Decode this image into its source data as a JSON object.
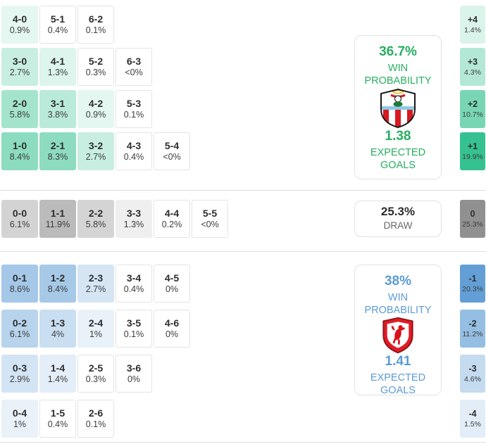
{
  "chart_data": {
    "type": "heatmap",
    "title": "Correct score and goal difference probability matrix",
    "sections": [
      {
        "id": "home",
        "crest": "southampton-crest",
        "accent": "#27ae60",
        "cell_base": "#12b77c",
        "win_probability": "36.7%",
        "win_probability_label": "WIN PROBABILITY",
        "expected_goals": "1.38",
        "expected_goals_label": "EXPECTED GOALS",
        "rows": [
          [
            [
              "4-0",
              "0.9%"
            ],
            [
              "5-1",
              "0.4%"
            ],
            [
              "6-2",
              "0.1%"
            ]
          ],
          [
            [
              "3-0",
              "2.7%"
            ],
            [
              "4-1",
              "1.3%"
            ],
            [
              "5-2",
              "0.3%"
            ],
            [
              "6-3",
              "<0%"
            ]
          ],
          [
            [
              "2-0",
              "5.8%"
            ],
            [
              "3-1",
              "3.8%"
            ],
            [
              "4-2",
              "0.9%"
            ],
            [
              "5-3",
              "0.1%"
            ]
          ],
          [
            [
              "1-0",
              "8.4%"
            ],
            [
              "2-1",
              "8.3%"
            ],
            [
              "3-2",
              "2.7%"
            ],
            [
              "4-3",
              "0.4%"
            ],
            [
              "5-4",
              "<0%"
            ]
          ]
        ],
        "goal_diffs": [
          [
            "+4",
            "1.4%"
          ],
          [
            "+3",
            "4.3%"
          ],
          [
            "+2",
            "10.7%"
          ],
          [
            "+1",
            "19.9%"
          ]
        ]
      },
      {
        "id": "draw",
        "accent": "#3d3d3d",
        "cell_base": "#8f8f8f",
        "probability": "25.3%",
        "label": "DRAW",
        "rows": [
          [
            [
              "0-0",
              "6.1%"
            ],
            [
              "1-1",
              "11.9%"
            ],
            [
              "2-2",
              "5.8%"
            ],
            [
              "3-3",
              "1.3%"
            ],
            [
              "4-4",
              "0.2%"
            ],
            [
              "5-5",
              "<0%"
            ]
          ]
        ],
        "goal_diffs": [
          [
            "0",
            "25.3%"
          ]
        ]
      },
      {
        "id": "away",
        "crest": "middlesbrough-crest",
        "accent": "#5b9bd5",
        "cell_base": "#4a90d0",
        "win_probability": "38%",
        "win_probability_label": "WIN PROBABILITY",
        "expected_goals": "1.41",
        "expected_goals_label": "EXPECTED GOALS",
        "rows": [
          [
            [
              "0-1",
              "8.6%"
            ],
            [
              "1-2",
              "8.4%"
            ],
            [
              "2-3",
              "2.7%"
            ],
            [
              "3-4",
              "0.4%"
            ],
            [
              "4-5",
              "0%"
            ]
          ],
          [
            [
              "0-2",
              "6.1%"
            ],
            [
              "1-3",
              "4%"
            ],
            [
              "2-4",
              "1%"
            ],
            [
              "3-5",
              "0.1%"
            ],
            [
              "4-6",
              "0%"
            ]
          ],
          [
            [
              "0-3",
              "2.9%"
            ],
            [
              "1-4",
              "1.4%"
            ],
            [
              "2-5",
              "0.3%"
            ],
            [
              "3-6",
              "0%"
            ]
          ],
          [
            [
              "0-4",
              "1%"
            ],
            [
              "1-5",
              "0.4%"
            ],
            [
              "2-6",
              "0.1%"
            ]
          ]
        ],
        "goal_diffs": [
          [
            "-1",
            "20.3%"
          ],
          [
            "-2",
            "11.2%"
          ],
          [
            "-3",
            "4.6%"
          ],
          [
            "-4",
            "1.5%"
          ]
        ]
      }
    ]
  }
}
